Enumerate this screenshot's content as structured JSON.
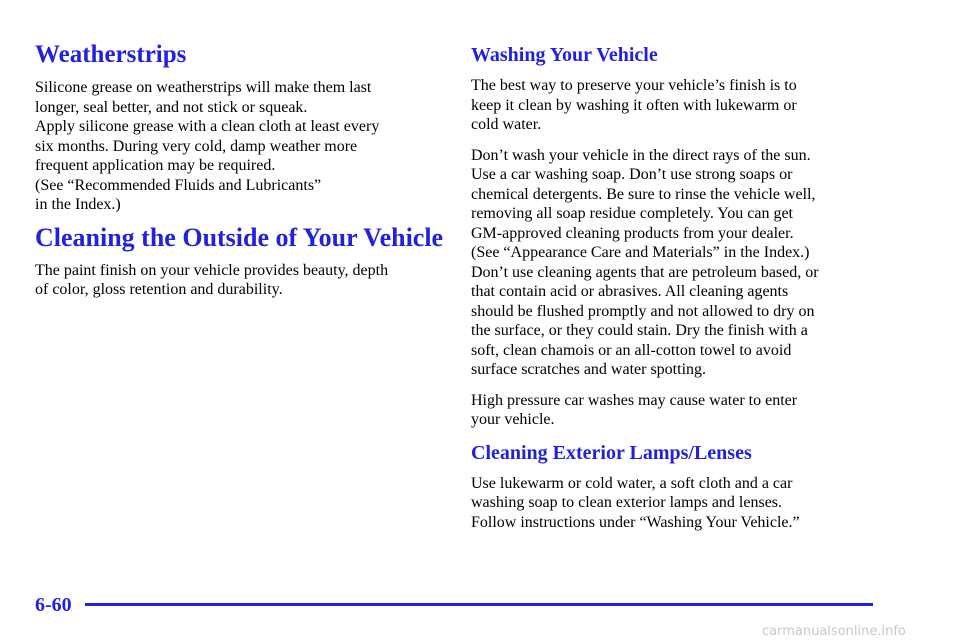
{
  "left": {
    "sections": [
      {
        "heading": "Weatherstrips",
        "paragraphs": [
          {
            "lines": [
              "Silicone grease on weatherstrips will make them last",
              "longer, seal better, and not stick or squeak.",
              "Apply silicone grease with a clean cloth at least every",
              "six months. During very cold, damp weather more",
              "frequent application may be required.",
              "(See “Recommended Fluids and Lubricants”",
              "in the Index.)"
            ]
          }
        ]
      },
      {
        "heading": "Cleaning the Outside of Your Vehicle",
        "paragraphs": [
          {
            "lines": [
              "The paint finish on your vehicle provides beauty, depth",
              "of color, gloss retention and durability."
            ]
          }
        ]
      }
    ]
  },
  "right": {
    "sections": [
      {
        "heading": "Washing Your Vehicle",
        "paragraphs": [
          {
            "lines": [
              "The best way to preserve your vehicle’s finish is to",
              "keep it clean by washing it often with lukewarm or",
              "cold water."
            ]
          },
          {
            "lines": [
              "Don’t wash your vehicle in the direct rays of the sun.",
              "Use a car washing soap. Don’t use strong soaps or",
              "chemical detergents. Be sure to rinse the vehicle well,",
              "removing all soap residue completely. You can get",
              "GM‐approved cleaning products from your dealer.",
              "(See “Appearance Care and Materials” in the Index.)",
              "Don’t use cleaning agents that are petroleum based, or",
              "that contain acid or abrasives. All cleaning agents",
              "should be flushed promptly and not allowed to dry on",
              "the surface, or they could stain. Dry the finish with a",
              "soft, clean chamois or an all‐cotton towel to avoid",
              "surface scratches and water spotting."
            ]
          },
          {
            "lines": [
              "High pressure car washes may cause water to enter",
              "your vehicle."
            ]
          }
        ]
      },
      {
        "heading": "Cleaning Exterior Lamps/Lenses",
        "paragraphs": [
          {
            "lines": [
              "Use lukewarm or cold water, a soft cloth and a car",
              "washing soap to clean exterior lamps and lenses.",
              "Follow instructions under “Washing Your Vehicle.”"
            ]
          }
        ]
      }
    ]
  },
  "footer": {
    "page_number": "6-60",
    "watermark": "carmanualsonline.info"
  }
}
